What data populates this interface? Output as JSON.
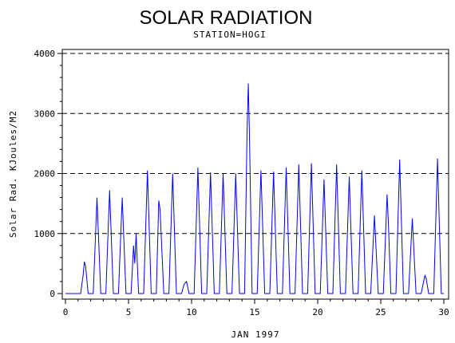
{
  "chart_data": {
    "type": "line",
    "title": "SOLAR RADIATION",
    "subtitle": "STATION=HOGI",
    "xlabel": "JAN 1997",
    "ylabel": "Solar Rad. KJoules/M2",
    "xlim": [
      0,
      30
    ],
    "ylim": [
      0,
      4000
    ],
    "xticks": [
      "0",
      "5",
      "10",
      "15",
      "20",
      "25",
      "30"
    ],
    "yticks": [
      "0",
      "1000",
      "2000",
      "3000",
      "4000"
    ],
    "grid": "horizontal dashed at 1000, 2000, 3000, 4000",
    "colors": {
      "line": "#0000ff",
      "axis": "#000000",
      "grid": "#000000"
    },
    "series": [
      {
        "values": [
          [
            0.0,
            0
          ],
          [
            1.2,
            0
          ],
          [
            1.4,
            300
          ],
          [
            1.5,
            530
          ],
          [
            1.6,
            450
          ],
          [
            1.8,
            0
          ],
          [
            2.2,
            0
          ],
          [
            2.5,
            1600
          ],
          [
            2.8,
            0
          ],
          [
            3.2,
            0
          ],
          [
            3.5,
            1720
          ],
          [
            3.8,
            0
          ],
          [
            4.2,
            0
          ],
          [
            4.5,
            1600
          ],
          [
            4.8,
            0
          ],
          [
            5.2,
            0
          ],
          [
            5.4,
            800
          ],
          [
            5.5,
            500
          ],
          [
            5.6,
            1000
          ],
          [
            5.8,
            0
          ],
          [
            6.2,
            0
          ],
          [
            6.5,
            2050
          ],
          [
            6.8,
            0
          ],
          [
            7.2,
            0
          ],
          [
            7.4,
            1550
          ],
          [
            7.5,
            1400
          ],
          [
            7.8,
            0
          ],
          [
            8.2,
            0
          ],
          [
            8.5,
            2000
          ],
          [
            8.8,
            0
          ],
          [
            9.2,
            0
          ],
          [
            9.4,
            150
          ],
          [
            9.6,
            200
          ],
          [
            9.8,
            0
          ],
          [
            10.2,
            0
          ],
          [
            10.5,
            2100
          ],
          [
            10.8,
            0
          ],
          [
            11.2,
            0
          ],
          [
            11.5,
            2020
          ],
          [
            11.8,
            0
          ],
          [
            12.2,
            0
          ],
          [
            12.5,
            2000
          ],
          [
            12.8,
            0
          ],
          [
            13.2,
            0
          ],
          [
            13.5,
            2000
          ],
          [
            13.8,
            0
          ],
          [
            14.2,
            0
          ],
          [
            14.4,
            2700
          ],
          [
            14.5,
            3500
          ],
          [
            14.6,
            2500
          ],
          [
            14.8,
            0
          ],
          [
            15.2,
            0
          ],
          [
            15.5,
            2050
          ],
          [
            15.8,
            0
          ],
          [
            16.2,
            0
          ],
          [
            16.5,
            2030
          ],
          [
            16.8,
            0
          ],
          [
            17.2,
            0
          ],
          [
            17.5,
            2100
          ],
          [
            17.8,
            0
          ],
          [
            18.2,
            0
          ],
          [
            18.5,
            2150
          ],
          [
            18.8,
            0
          ],
          [
            19.2,
            0
          ],
          [
            19.5,
            2170
          ],
          [
            19.8,
            0
          ],
          [
            20.2,
            0
          ],
          [
            20.5,
            1900
          ],
          [
            20.8,
            0
          ],
          [
            21.2,
            0
          ],
          [
            21.5,
            2150
          ],
          [
            21.8,
            0
          ],
          [
            22.2,
            0
          ],
          [
            22.5,
            1950
          ],
          [
            22.8,
            0
          ],
          [
            23.2,
            0
          ],
          [
            23.5,
            2050
          ],
          [
            23.8,
            0
          ],
          [
            24.2,
            0
          ],
          [
            24.5,
            1300
          ],
          [
            24.8,
            0
          ],
          [
            25.2,
            0
          ],
          [
            25.5,
            1650
          ],
          [
            25.6,
            1200
          ],
          [
            25.8,
            0
          ],
          [
            26.2,
            0
          ],
          [
            26.5,
            2230
          ],
          [
            26.8,
            0
          ],
          [
            27.2,
            0
          ],
          [
            27.5,
            1250
          ],
          [
            27.8,
            0
          ],
          [
            28.2,
            0
          ],
          [
            28.4,
            200
          ],
          [
            28.5,
            300
          ],
          [
            28.6,
            250
          ],
          [
            28.8,
            0
          ],
          [
            29.2,
            0
          ],
          [
            29.5,
            2250
          ],
          [
            29.8,
            0
          ],
          [
            30.0,
            0
          ]
        ]
      }
    ]
  }
}
